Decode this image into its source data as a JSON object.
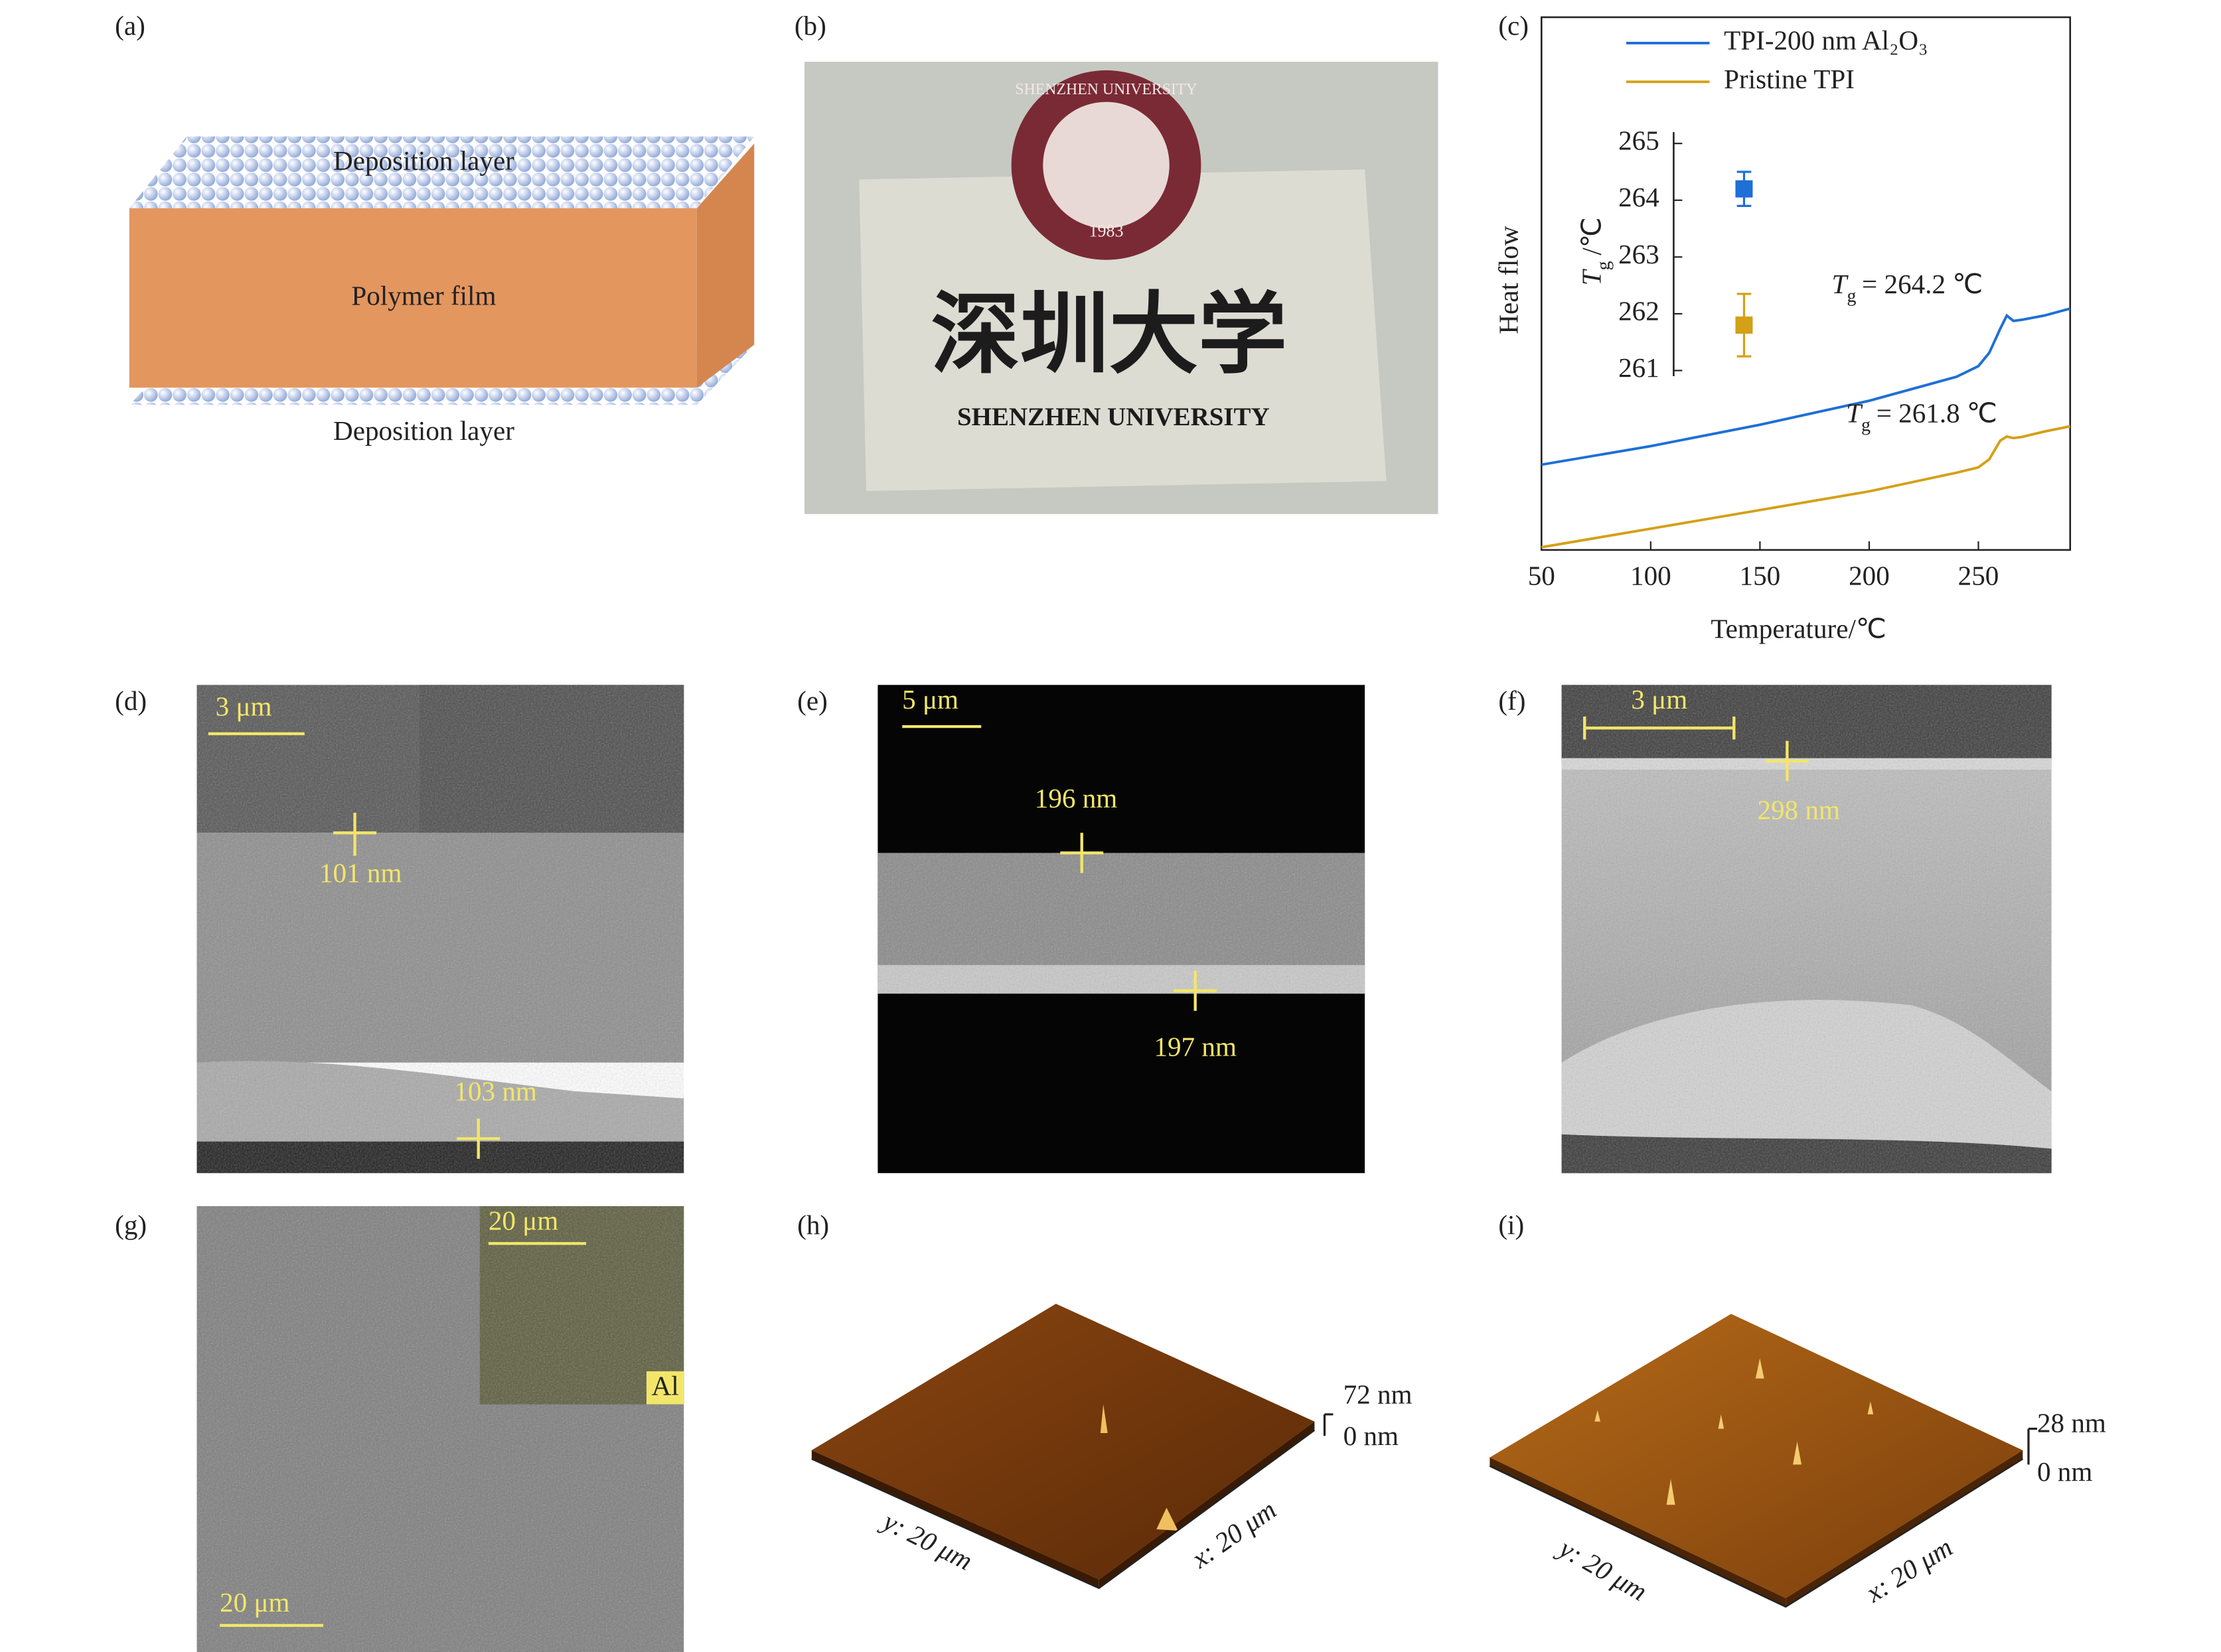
{
  "panels": {
    "a": {
      "label": "(a)",
      "top_layer": "Deposition layer",
      "middle": "Polymer film",
      "bottom_layer": "Deposition layer"
    },
    "b": {
      "label": "(b)",
      "seal_text": "SHENZHEN UNIVERSITY",
      "seal_year": "1983",
      "chinese_name": "深圳大学",
      "english_name": "SHENZHEN UNIVERSITY"
    },
    "c": {
      "label": "(c)"
    },
    "d": {
      "label": "(d)",
      "scale_bar": "3 μm",
      "top_thickness": "101 nm",
      "bottom_thickness": "103 nm"
    },
    "e": {
      "label": "(e)",
      "scale_bar": "5 μm",
      "top_thickness": "196 nm",
      "bottom_thickness": "197 nm"
    },
    "f": {
      "label": "(f)",
      "scale_bar": "3 μm",
      "top_thickness": "298 nm"
    },
    "g": {
      "label": "(g)",
      "scale_bar": "20 μm",
      "inset_scale_bar": "20 μm",
      "inset_element": "Al"
    },
    "h": {
      "label": "(h)",
      "z_max": "72 nm",
      "z_min": "0 nm",
      "y_axis": "y: 20 μm",
      "x_axis": "x: 20 μm"
    },
    "i": {
      "label": "(i)",
      "z_max": "28 nm",
      "z_min": "0 nm",
      "y_axis": "y: 20 μm",
      "x_axis": "x: 20 μm"
    }
  },
  "chart_data": [
    {
      "type": "line",
      "xlabel": "Temperature/℃",
      "ylabel": "Heat flow",
      "x": [
        50,
        100,
        150,
        200,
        240,
        250,
        255,
        260,
        263,
        266,
        270,
        280,
        292
      ],
      "series": [
        {
          "name": "TPI-200 nm Al₂O₃",
          "color": "#1f6fd6",
          "values": [
            16,
            19.5,
            23.5,
            28,
            32.5,
            34.5,
            37,
            41.5,
            44,
            43,
            43.2,
            44,
            45.3
          ]
        },
        {
          "name": "Pristine TPI",
          "color": "#d4a017",
          "values": [
            0.5,
            4,
            7.5,
            11,
            14.5,
            15.5,
            17,
            20.5,
            21.3,
            21,
            21.2,
            22.2,
            23.2
          ]
        }
      ],
      "xlim": [
        50,
        292
      ],
      "xticks": [
        50,
        100,
        150,
        200,
        250
      ],
      "ylim": [
        0,
        100
      ],
      "annotations": [
        {
          "symbol": "T",
          "subscript": "g",
          "text": "= 264.2 ℃"
        },
        {
          "symbol": "T",
          "subscript": "g",
          "text": "= 261.8 ℃"
        }
      ]
    },
    {
      "type": "errorbar",
      "ylabel": {
        "symbol": "T",
        "subscript": "g",
        "text": "/℃"
      },
      "values": [
        264.2,
        261.8
      ],
      "errors": [
        0.3,
        0.55
      ],
      "colors": [
        "#1f6fd6",
        "#d4a017"
      ],
      "ylim": [
        260.9,
        265.2
      ],
      "yticks": [
        261,
        262,
        263,
        264,
        265
      ]
    }
  ]
}
